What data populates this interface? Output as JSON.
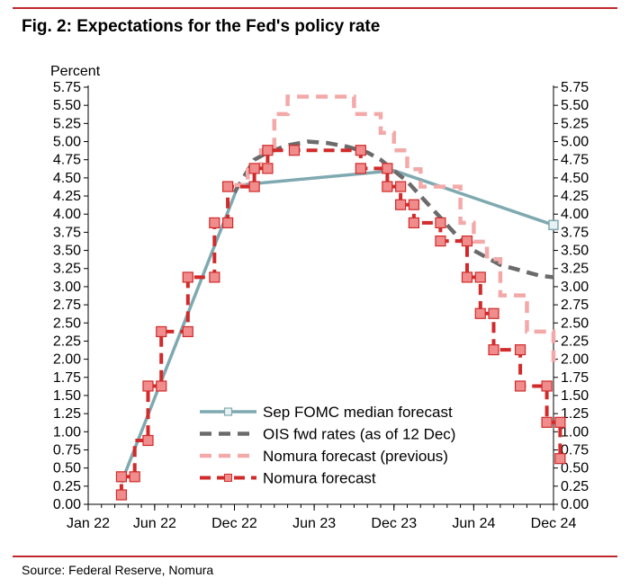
{
  "title": "Fig. 2: Expectations for the Fed's policy rate",
  "source": "Source: Federal Reserve, Nomura",
  "colors": {
    "accent_rule": "#c0282d",
    "fomc": "#7fa9b0",
    "ois": "#6b6b6b",
    "nomura_prev": "#f4a9a9",
    "nomura": "#d12a2a",
    "marker_fill": "#f08c8c"
  },
  "chart_data": {
    "type": "line",
    "ylabel": "Percent",
    "ylim": [
      0,
      5.75
    ],
    "xlim": [
      0,
      35
    ],
    "y_ticks": [
      "0.00",
      "0.25",
      "0.50",
      "0.75",
      "1.00",
      "1.25",
      "1.50",
      "1.75",
      "2.00",
      "2.25",
      "2.50",
      "2.75",
      "3.00",
      "3.25",
      "3.50",
      "3.75",
      "4.00",
      "4.25",
      "4.50",
      "4.75",
      "5.00",
      "5.25",
      "5.50",
      "5.75"
    ],
    "x_tick_labels": [
      "Jan 22",
      "Jun 22",
      "Dec 22",
      "Jun 23",
      "Dec 23",
      "Jun 24",
      "Dec 24"
    ],
    "x_tick_values": [
      0,
      5,
      11,
      17,
      23,
      29,
      35
    ],
    "grid": false,
    "legend_position": "bottom-center",
    "series": [
      {
        "name": "Sep FOMC median forecast",
        "style": "solid-square",
        "points": [
          [
            2.5,
            0.3
          ],
          [
            11.3,
            4.4
          ],
          [
            23,
            4.6
          ],
          [
            35,
            3.85
          ]
        ]
      },
      {
        "name": "OIS fwd rates (as of 12 Dec)",
        "style": "dashed",
        "points": [
          [
            11,
            4.3
          ],
          [
            12.5,
            4.75
          ],
          [
            13.5,
            4.85
          ],
          [
            15,
            4.95
          ],
          [
            16.5,
            5.0
          ],
          [
            18,
            4.98
          ],
          [
            19.5,
            4.93
          ],
          [
            21,
            4.85
          ],
          [
            22,
            4.75
          ],
          [
            23,
            4.6
          ],
          [
            24,
            4.45
          ],
          [
            25,
            4.25
          ],
          [
            26,
            4.05
          ],
          [
            27,
            3.85
          ],
          [
            28,
            3.65
          ],
          [
            29,
            3.5
          ],
          [
            30,
            3.4
          ],
          [
            31,
            3.3
          ],
          [
            32,
            3.25
          ],
          [
            33,
            3.2
          ],
          [
            34,
            3.15
          ],
          [
            35,
            3.13
          ]
        ]
      },
      {
        "name": "Nomura forecast (previous)",
        "style": "dashed-step",
        "points": [
          [
            11,
            4.4
          ],
          [
            12,
            4.4
          ],
          [
            12,
            4.65
          ],
          [
            13,
            4.65
          ],
          [
            13,
            4.88
          ],
          [
            14,
            4.88
          ],
          [
            14,
            5.38
          ],
          [
            15,
            5.38
          ],
          [
            15,
            5.62
          ],
          [
            20,
            5.62
          ],
          [
            20,
            5.38
          ],
          [
            22,
            5.38
          ],
          [
            22,
            5.12
          ],
          [
            23,
            5.12
          ],
          [
            23,
            4.88
          ],
          [
            24,
            4.88
          ],
          [
            24,
            4.62
          ],
          [
            25,
            4.62
          ],
          [
            25,
            4.38
          ],
          [
            28,
            4.38
          ],
          [
            28,
            3.88
          ],
          [
            29,
            3.88
          ],
          [
            29,
            3.62
          ],
          [
            30,
            3.62
          ],
          [
            30,
            3.38
          ],
          [
            31,
            3.38
          ],
          [
            31,
            2.88
          ],
          [
            33,
            2.88
          ],
          [
            33,
            2.38
          ],
          [
            35,
            2.38
          ],
          [
            35,
            1.88
          ]
        ]
      },
      {
        "name": "Nomura forecast",
        "style": "dashed-step-marker",
        "points": [
          [
            2.5,
            0.13
          ],
          [
            2.5,
            0.38
          ],
          [
            3.5,
            0.38
          ],
          [
            3.5,
            0.88
          ],
          [
            4.5,
            0.88
          ],
          [
            4.5,
            1.63
          ],
          [
            5.5,
            1.63
          ],
          [
            5.5,
            2.38
          ],
          [
            7.5,
            2.38
          ],
          [
            7.5,
            3.13
          ],
          [
            9.5,
            3.13
          ],
          [
            9.5,
            3.88
          ],
          [
            10.5,
            3.88
          ],
          [
            10.5,
            4.38
          ],
          [
            12.5,
            4.38
          ],
          [
            12.5,
            4.63
          ],
          [
            13.5,
            4.63
          ],
          [
            13.5,
            4.88
          ],
          [
            15.5,
            4.88
          ],
          [
            20.5,
            4.88
          ],
          [
            20.5,
            4.63
          ],
          [
            22.5,
            4.63
          ],
          [
            22.5,
            4.38
          ],
          [
            23.5,
            4.38
          ],
          [
            23.5,
            4.13
          ],
          [
            24.5,
            4.13
          ],
          [
            24.5,
            3.88
          ],
          [
            26.5,
            3.88
          ],
          [
            26.5,
            3.63
          ],
          [
            28.5,
            3.63
          ],
          [
            28.5,
            3.13
          ],
          [
            29.5,
            3.13
          ],
          [
            29.5,
            2.63
          ],
          [
            30.5,
            2.63
          ],
          [
            30.5,
            2.13
          ],
          [
            32.5,
            2.13
          ],
          [
            32.5,
            1.63
          ],
          [
            34.5,
            1.63
          ],
          [
            34.5,
            1.13
          ],
          [
            35.5,
            1.13
          ],
          [
            35.5,
            0.63
          ]
        ],
        "markers": [
          [
            2.5,
            0.13
          ],
          [
            2.5,
            0.38
          ],
          [
            3.5,
            0.38
          ],
          [
            4.5,
            0.88
          ],
          [
            4.5,
            1.63
          ],
          [
            5.5,
            1.63
          ],
          [
            5.5,
            2.38
          ],
          [
            7.5,
            2.38
          ],
          [
            7.5,
            3.13
          ],
          [
            9.5,
            3.13
          ],
          [
            9.5,
            3.88
          ],
          [
            10.5,
            3.88
          ],
          [
            10.5,
            4.38
          ],
          [
            12.5,
            4.38
          ],
          [
            12.5,
            4.63
          ],
          [
            13.5,
            4.63
          ],
          [
            13.5,
            4.88
          ],
          [
            15.5,
            4.88
          ],
          [
            20.5,
            4.88
          ],
          [
            20.5,
            4.63
          ],
          [
            22.5,
            4.63
          ],
          [
            22.5,
            4.38
          ],
          [
            23.5,
            4.38
          ],
          [
            23.5,
            4.13
          ],
          [
            24.5,
            4.13
          ],
          [
            24.5,
            3.88
          ],
          [
            26.5,
            3.88
          ],
          [
            26.5,
            3.63
          ],
          [
            28.5,
            3.63
          ],
          [
            28.5,
            3.13
          ],
          [
            29.5,
            3.13
          ],
          [
            29.5,
            2.63
          ],
          [
            30.5,
            2.63
          ],
          [
            30.5,
            2.13
          ],
          [
            32.5,
            2.13
          ],
          [
            32.5,
            1.63
          ],
          [
            34.5,
            1.63
          ],
          [
            34.5,
            1.13
          ],
          [
            35.5,
            1.13
          ],
          [
            35.5,
            0.63
          ]
        ]
      }
    ]
  }
}
